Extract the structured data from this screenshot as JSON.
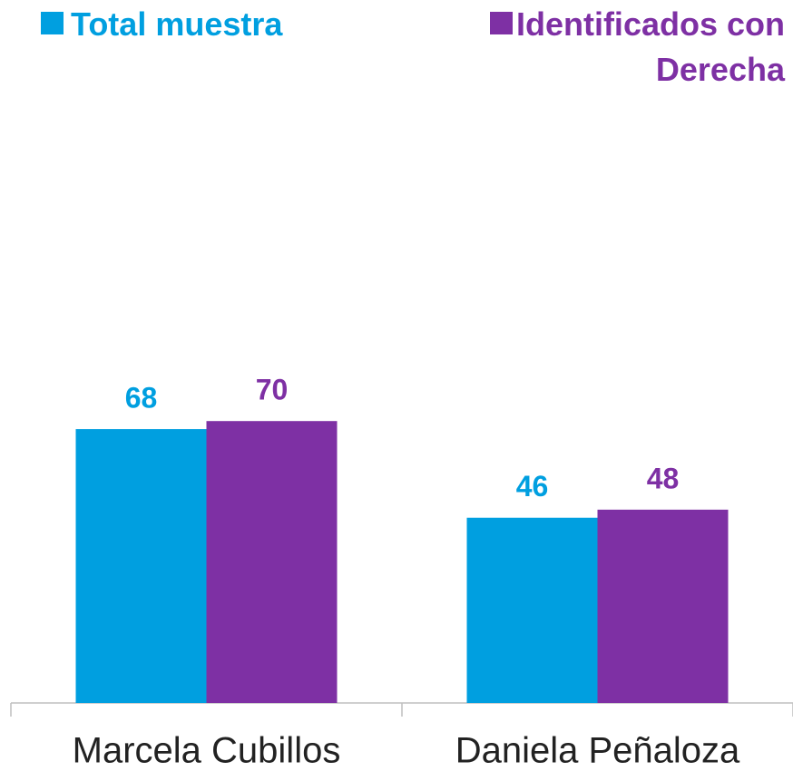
{
  "chart_data": {
    "type": "bar",
    "categories": [
      "Marcela Cubillos",
      "Daniela Peñaloza"
    ],
    "series": [
      {
        "name": "Total muestra",
        "color": "#009fe0",
        "values": [
          68,
          46
        ]
      },
      {
        "name": "Identificados con Derecha",
        "color": "#7e30a4",
        "values": [
          70,
          48
        ]
      }
    ]
  }
}
